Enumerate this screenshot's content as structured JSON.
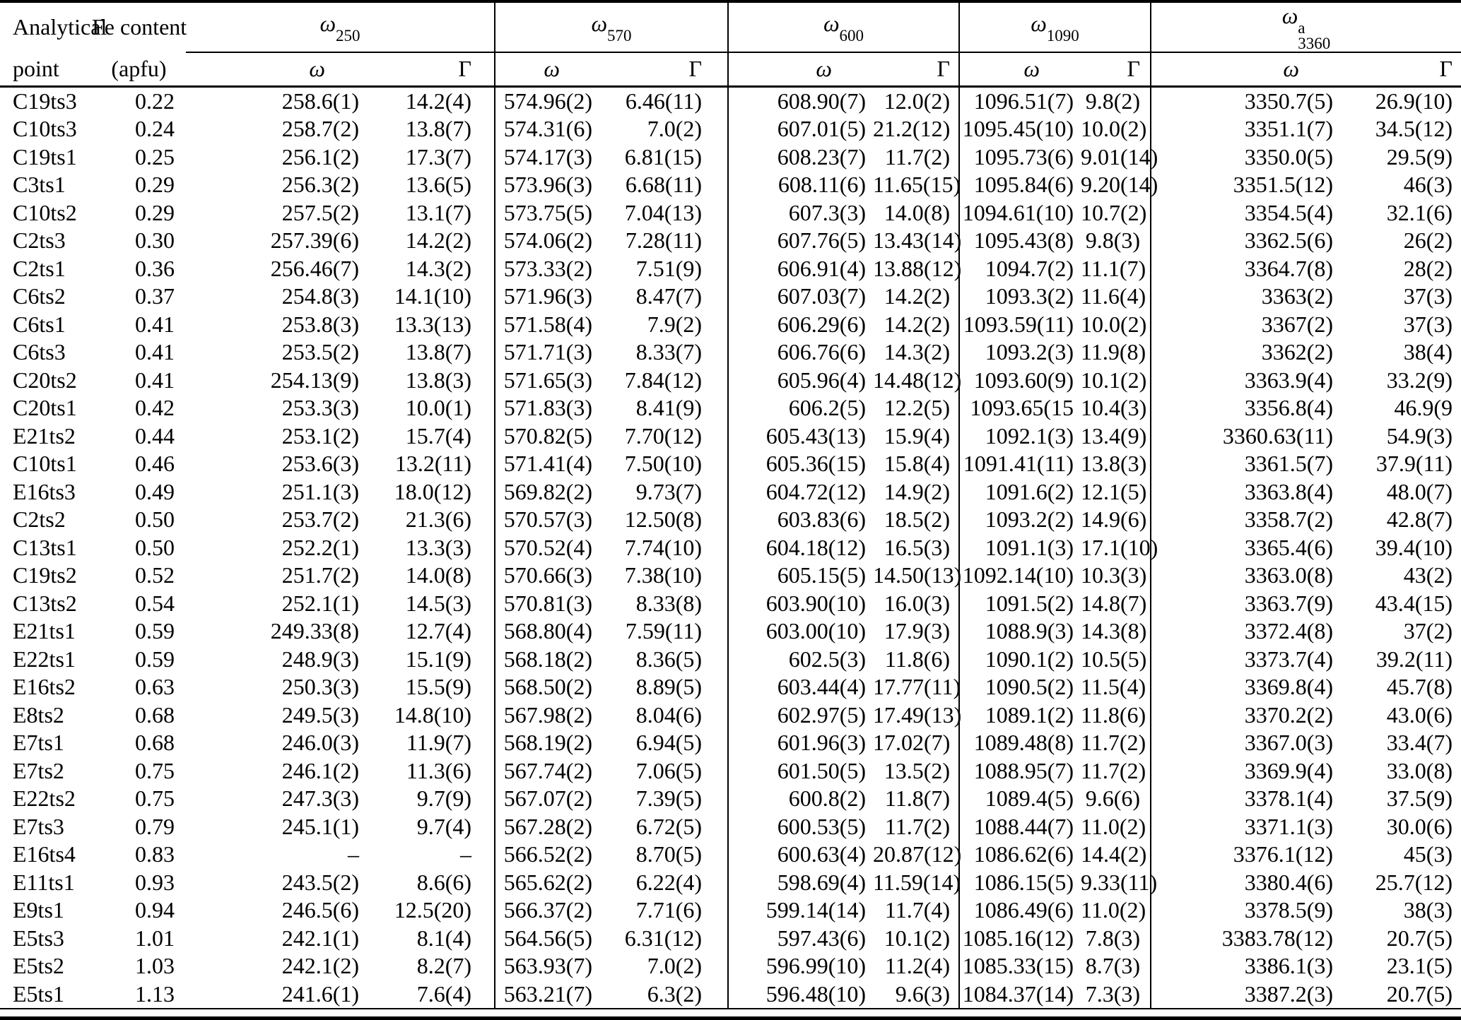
{
  "table": {
    "col1_header": [
      "Analytical",
      "point"
    ],
    "col2_header": [
      "Fe content",
      "(apfu)"
    ],
    "groups": [
      {
        "base": "ω",
        "sub": "250",
        "sup": ""
      },
      {
        "base": "ω",
        "sub": "570",
        "sup": ""
      },
      {
        "base": "ω",
        "sub": "600",
        "sup": ""
      },
      {
        "base": "ω",
        "sub": "1090",
        "sup": ""
      },
      {
        "base": "ω",
        "sub": "3360",
        "sup": "a"
      }
    ],
    "subheaders": {
      "omega": "ω",
      "gamma": "Γ"
    },
    "rows": [
      [
        "C19ts3",
        "0.22",
        "258.6(1)",
        "14.2(4)",
        "574.96(2)",
        "6.46(11)",
        "608.90(7)",
        "12.0(2)",
        "1096.51(7)",
        "9.8(2)",
        "3350.7(5)",
        "26.9(10)"
      ],
      [
        "C10ts3",
        "0.24",
        "258.7(2)",
        "13.8(7)",
        "574.31(6)",
        "7.0(2)",
        "607.01(5)",
        "21.2(12)",
        "1095.45(10)",
        "10.0(2)",
        "3351.1(7)",
        "34.5(12)"
      ],
      [
        "C19ts1",
        "0.25",
        "256.1(2)",
        "17.3(7)",
        "574.17(3)",
        "6.81(15)",
        "608.23(7)",
        "11.7(2)",
        "1095.73(6)",
        "9.01(14)",
        "3350.0(5)",
        "29.5(9)"
      ],
      [
        "C3ts1",
        "0.29",
        "256.3(2)",
        "13.6(5)",
        "573.96(3)",
        "6.68(11)",
        "608.11(6)",
        "11.65(15)",
        "1095.84(6)",
        "9.20(14)",
        "3351.5(12)",
        "46(3)"
      ],
      [
        "C10ts2",
        "0.29",
        "257.5(2)",
        "13.1(7)",
        "573.75(5)",
        "7.04(13)",
        "607.3(3)",
        "14.0(8)",
        "1094.61(10)",
        "10.7(2)",
        "3354.5(4)",
        "32.1(6)"
      ],
      [
        "C2ts3",
        "0.30",
        "257.39(6)",
        "14.2(2)",
        "574.06(2)",
        "7.28(11)",
        "607.76(5)",
        "13.43(14)",
        "1095.43(8)",
        "9.8(3)",
        "3362.5(6)",
        "26(2)"
      ],
      [
        "C2ts1",
        "0.36",
        "256.46(7)",
        "14.3(2)",
        "573.33(2)",
        "7.51(9)",
        "606.91(4)",
        "13.88(12)",
        "1094.7(2)",
        "11.1(7)",
        "3364.7(8)",
        "28(2)"
      ],
      [
        "C6ts2",
        "0.37",
        "254.8(3)",
        "14.1(10)",
        "571.96(3)",
        "8.47(7)",
        "607.03(7)",
        "14.2(2)",
        "1093.3(2)",
        "11.6(4)",
        "3363(2)",
        "37(3)"
      ],
      [
        "C6ts1",
        "0.41",
        "253.8(3)",
        "13.3(13)",
        "571.58(4)",
        "7.9(2)",
        "606.29(6)",
        "14.2(2)",
        "1093.59(11)",
        "10.0(2)",
        "3367(2)",
        "37(3)"
      ],
      [
        "C6ts3",
        "0.41",
        "253.5(2)",
        "13.8(7)",
        "571.71(3)",
        "8.33(7)",
        "606.76(6)",
        "14.3(2)",
        "1093.2(3)",
        "11.9(8)",
        "3362(2)",
        "38(4)"
      ],
      [
        "C20ts2",
        "0.41",
        "254.13(9)",
        "13.8(3)",
        "571.65(3)",
        "7.84(12)",
        "605.96(4)",
        "14.48(12)",
        "1093.60(9)",
        "10.1(2)",
        "3363.9(4)",
        "33.2(9)"
      ],
      [
        "C20ts1",
        "0.42",
        "253.3(3)",
        "10.0(1)",
        "571.83(3)",
        "8.41(9)",
        "606.2(5)",
        "12.2(5)",
        "1093.65(15",
        "10.4(3)",
        "3356.8(4)",
        "46.9(9"
      ],
      [
        "E21ts2",
        "0.44",
        "253.1(2)",
        "15.7(4)",
        "570.82(5)",
        "7.70(12)",
        "605.43(13)",
        "15.9(4)",
        "1092.1(3)",
        "13.4(9)",
        "3360.63(11)",
        "54.9(3)"
      ],
      [
        "C10ts1",
        "0.46",
        "253.6(3)",
        "13.2(11)",
        "571.41(4)",
        "7.50(10)",
        "605.36(15)",
        "15.8(4)",
        "1091.41(11)",
        "13.8(3)",
        "3361.5(7)",
        "37.9(11)"
      ],
      [
        "E16ts3",
        "0.49",
        "251.1(3)",
        "18.0(12)",
        "569.82(2)",
        "9.73(7)",
        "604.72(12)",
        "14.9(2)",
        "1091.6(2)",
        "12.1(5)",
        "3363.8(4)",
        "48.0(7)"
      ],
      [
        "C2ts2",
        "0.50",
        "253.7(2)",
        "21.3(6)",
        "570.57(3)",
        "12.50(8)",
        "603.83(6)",
        "18.5(2)",
        "1093.2(2)",
        "14.9(6)",
        "3358.7(2)",
        "42.8(7)"
      ],
      [
        "C13ts1",
        "0.50",
        "252.2(1)",
        "13.3(3)",
        "570.52(4)",
        "7.74(10)",
        "604.18(12)",
        "16.5(3)",
        "1091.1(3)",
        "17.1(10)",
        "3365.4(6)",
        "39.4(10)"
      ],
      [
        "C19ts2",
        "0.52",
        "251.7(2)",
        "14.0(8)",
        "570.66(3)",
        "7.38(10)",
        "605.15(5)",
        "14.50(13)",
        "1092.14(10)",
        "10.3(3)",
        "3363.0(8)",
        "43(2)"
      ],
      [
        "C13ts2",
        "0.54",
        "252.1(1)",
        "14.5(3)",
        "570.81(3)",
        "8.33(8)",
        "603.90(10)",
        "16.0(3)",
        "1091.5(2)",
        "14.8(7)",
        "3363.7(9)",
        "43.4(15)"
      ],
      [
        "E21ts1",
        "0.59",
        "249.33(8)",
        "12.7(4)",
        "568.80(4)",
        "7.59(11)",
        "603.00(10)",
        "17.9(3)",
        "1088.9(3)",
        "14.3(8)",
        "3372.4(8)",
        "37(2)"
      ],
      [
        "E22ts1",
        "0.59",
        "248.9(3)",
        "15.1(9)",
        "568.18(2)",
        "8.36(5)",
        "602.5(3)",
        "11.8(6)",
        "1090.1(2)",
        "10.5(5)",
        "3373.7(4)",
        "39.2(11)"
      ],
      [
        "E16ts2",
        "0.63",
        "250.3(3)",
        "15.5(9)",
        "568.50(2)",
        "8.89(5)",
        "603.44(4)",
        "17.77(11)",
        "1090.5(2)",
        "11.5(4)",
        "3369.8(4)",
        "45.7(8)"
      ],
      [
        "E8ts2",
        "0.68",
        "249.5(3)",
        "14.8(10)",
        "567.98(2)",
        "8.04(6)",
        "602.97(5)",
        "17.49(13)",
        "1089.1(2)",
        "11.8(6)",
        "3370.2(2)",
        "43.0(6)"
      ],
      [
        "E7ts1",
        "0.68",
        "246.0(3)",
        "11.9(7)",
        "568.19(2)",
        "6.94(5)",
        "601.96(3)",
        "17.02(7)",
        "1089.48(8)",
        "11.7(2)",
        "3367.0(3)",
        "33.4(7)"
      ],
      [
        "E7ts2",
        "0.75",
        "246.1(2)",
        "11.3(6)",
        "567.74(2)",
        "7.06(5)",
        "601.50(5)",
        "13.5(2)",
        "1088.95(7)",
        "11.7(2)",
        "3369.9(4)",
        "33.0(8)"
      ],
      [
        "E22ts2",
        "0.75",
        "247.3(3)",
        "9.7(9)",
        "567.07(2)",
        "7.39(5)",
        "600.8(2)",
        "11.8(7)",
        "1089.4(5)",
        "9.6(6)",
        "3378.1(4)",
        "37.5(9)"
      ],
      [
        "E7ts3",
        "0.79",
        "245.1(1)",
        "9.7(4)",
        "567.28(2)",
        "6.72(5)",
        "600.53(5)",
        "11.7(2)",
        "1088.44(7)",
        "11.0(2)",
        "3371.1(3)",
        "30.0(6)"
      ],
      [
        "E16ts4",
        "0.83",
        "–",
        "–",
        "566.52(2)",
        "8.70(5)",
        "600.63(4)",
        "20.87(12)",
        "1086.62(6)",
        "14.4(2)",
        "3376.1(12)",
        "45(3)"
      ],
      [
        "E11ts1",
        "0.93",
        "243.5(2)",
        "8.6(6)",
        "565.62(2)",
        "6.22(4)",
        "598.69(4)",
        "11.59(14)",
        "1086.15(5)",
        "9.33(11)",
        "3380.4(6)",
        "25.7(12)"
      ],
      [
        "E9ts1",
        "0.94",
        "246.5(6)",
        "12.5(20)",
        "566.37(2)",
        "7.71(6)",
        "599.14(14)",
        "11.7(4)",
        "1086.49(6)",
        "11.0(2)",
        "3378.5(9)",
        "38(3)"
      ],
      [
        "E5ts3",
        "1.01",
        "242.1(1)",
        "8.1(4)",
        "564.56(5)",
        "6.31(12)",
        "597.43(6)",
        "10.1(2)",
        "1085.16(12)",
        "7.8(3)",
        "3383.78(12)",
        "20.7(5)"
      ],
      [
        "E5ts2",
        "1.03",
        "242.1(2)",
        "8.2(7)",
        "563.93(7)",
        "7.0(2)",
        "596.99(10)",
        "11.2(4)",
        "1085.33(15)",
        "8.7(3)",
        "3386.1(3)",
        "23.1(5)"
      ],
      [
        "E5ts1",
        "1.13",
        "241.6(1)",
        "7.6(4)",
        "563.21(7)",
        "6.3(2)",
        "596.48(10)",
        "9.6(3)",
        "1084.37(14)",
        "7.3(3)",
        "3387.2(3)",
        "20.7(5)"
      ]
    ]
  }
}
